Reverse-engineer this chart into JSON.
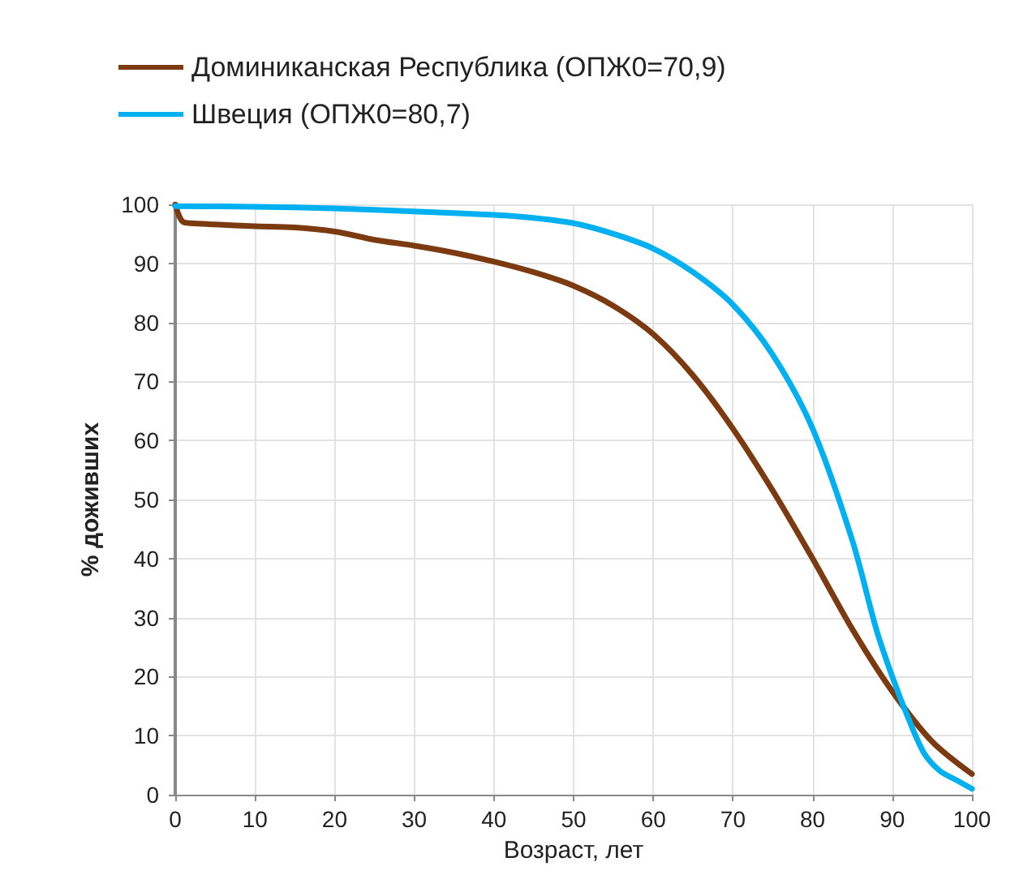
{
  "chart_data": {
    "type": "line",
    "xlabel": "Возраст, лет",
    "ylabel": "% доживших",
    "xlim": [
      0,
      100
    ],
    "xticks": [
      0,
      10,
      20,
      30,
      40,
      50,
      60,
      70,
      80,
      90,
      100
    ],
    "ylim": [
      0,
      100
    ],
    "yticks": [
      0,
      10,
      20,
      30,
      40,
      50,
      60,
      70,
      80,
      90,
      100
    ],
    "grid": true,
    "legend": "top left",
    "marker": "none",
    "line_style": "solid",
    "series": [
      {
        "name": "Доминиканская Республика (ОПЖ0=70,9)",
        "color": "#7b3a10",
        "x": [
          0,
          0.5,
          1,
          2,
          5,
          10,
          15,
          20,
          25,
          30,
          35,
          40,
          45,
          50,
          55,
          60,
          65,
          70,
          75,
          80,
          85,
          90,
          95,
          100
        ],
        "values": [
          100,
          98,
          97,
          96.8,
          96.6,
          96.3,
          96.1,
          95.4,
          94,
          93,
          91.8,
          90.3,
          88.5,
          86.2,
          82.8,
          78,
          71,
          62,
          51.5,
          40,
          28,
          17.5,
          9,
          3.5
        ]
      },
      {
        "name": "Швеция (ОПЖ0=80,7)",
        "color": "#00b0f0",
        "x": [
          0,
          10,
          20,
          30,
          40,
          45,
          50,
          55,
          60,
          65,
          70,
          75,
          80,
          85,
          88,
          90,
          92,
          94,
          96,
          98,
          100
        ],
        "values": [
          99.7,
          99.6,
          99.3,
          98.8,
          98.2,
          97.7,
          96.8,
          95,
          92.5,
          88.5,
          83,
          74.5,
          62,
          43,
          28,
          20,
          13,
          7,
          4,
          2.5,
          1
        ]
      }
    ]
  }
}
